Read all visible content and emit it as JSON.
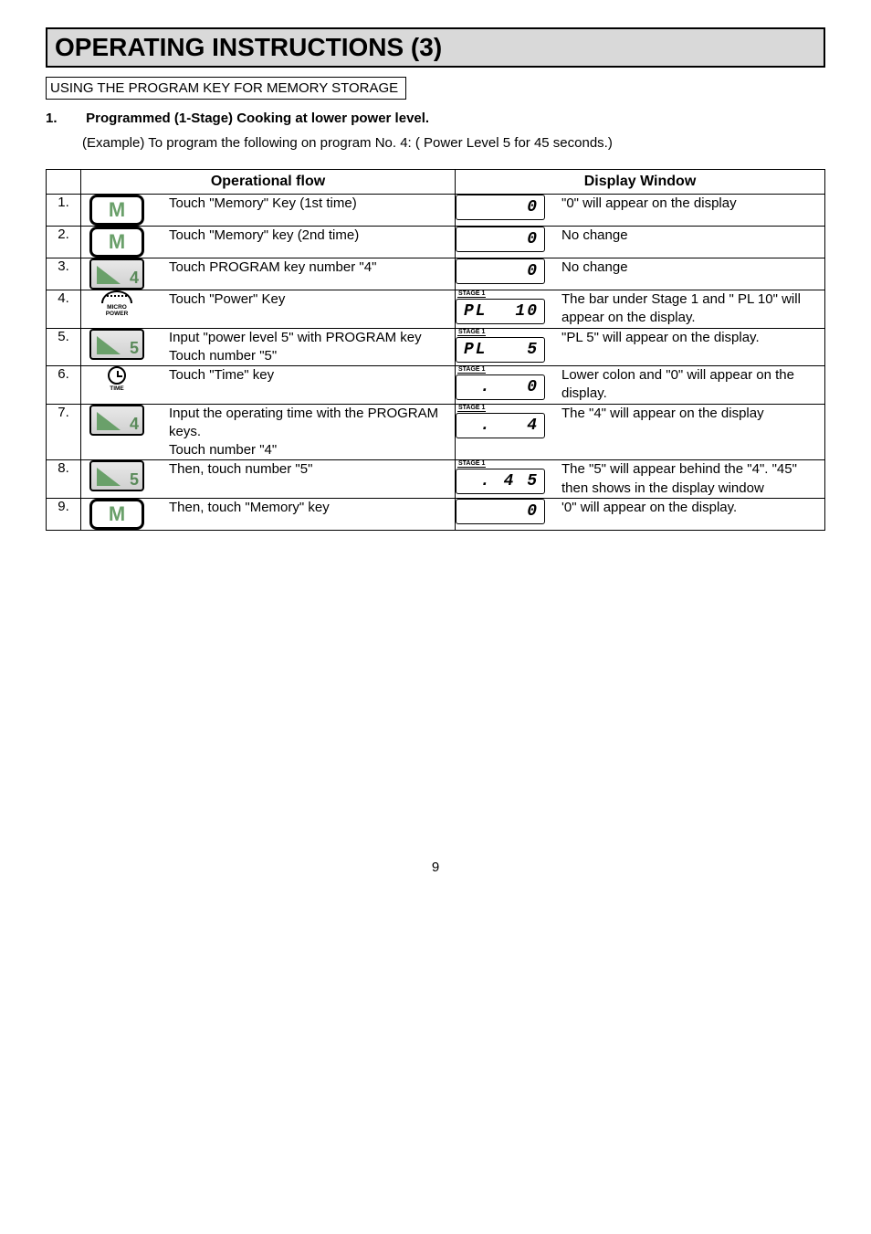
{
  "page": {
    "header": "OPERATING INSTRUCTIONS (3)",
    "subheader": "USING THE PROGRAM KEY FOR MEMORY STORAGE",
    "stepNum": "1.",
    "stepTitle": "Programmed (1-Stage) Cooking at lower power level.",
    "example": "(Example) To program the following on program No. 4: ( Power Level 5 for 45 seconds.)",
    "pageNumber": "9"
  },
  "table": {
    "headers": {
      "opflow": "Operational flow",
      "display": "Display Window"
    },
    "stageLabel": "STAGE 1",
    "iconLabels": {
      "micro": "MICRO\nPOWER",
      "time": "TIME"
    },
    "rows": [
      {
        "n": "1.",
        "keyType": "M",
        "keyVal": "M",
        "opText": "Touch \"Memory\" Key (1st time)",
        "stage": false,
        "lcdLeft": "",
        "lcdRight": "0",
        "dispText": "\"0\" will appear on the display"
      },
      {
        "n": "2.",
        "keyType": "M",
        "keyVal": "M",
        "opText": "Touch \"Memory\" key (2nd time)",
        "stage": false,
        "lcdLeft": "",
        "lcdRight": "0",
        "dispText": "No change"
      },
      {
        "n": "3.",
        "keyType": "prog",
        "keyVal": "4",
        "opText": "Touch PROGRAM key number \"4\"",
        "stage": false,
        "lcdLeft": "",
        "lcdRight": "0",
        "dispText": "No change"
      },
      {
        "n": "4.",
        "keyType": "micro",
        "keyVal": "",
        "opText": "Touch \"Power\" Key",
        "stage": true,
        "lcdLeft": "PL",
        "lcdRight": "10",
        "dispText": "The bar under Stage 1 and \" PL 10\" will appear on the display."
      },
      {
        "n": "5.",
        "keyType": "prog",
        "keyVal": "5",
        "opText": "Input \"power level 5\" with PROGRAM key Touch number \"5\"",
        "stage": true,
        "lcdLeft": "PL",
        "lcdRight": "5",
        "dispText": "\"PL 5\" will appear on the display."
      },
      {
        "n": "6.",
        "keyType": "time",
        "keyVal": "",
        "opText": "Touch \"Time\" key",
        "stage": true,
        "lcdLeft": "",
        "lcdRight": ".   0",
        "dispText": "Lower colon and \"0\" will appear on the display."
      },
      {
        "n": "7.",
        "keyType": "prog",
        "keyVal": "4",
        "opText": "Input the operating time with the PROGRAM keys.\nTouch number \"4\"",
        "stage": true,
        "lcdLeft": "",
        "lcdRight": ".   4",
        "dispText": "The \"4\" will appear on the display"
      },
      {
        "n": "8.",
        "keyType": "prog",
        "keyVal": "5",
        "opText": "Then, touch number \"5\"",
        "stage": true,
        "lcdLeft": "",
        "lcdRight": ". 4 5",
        "dispText": "The \"5\" will appear behind the \"4\". \"45\" then shows in the display window"
      },
      {
        "n": "9.",
        "keyType": "M",
        "keyVal": "M",
        "opText": "Then, touch \"Memory\" key",
        "stage": false,
        "lcdLeft": "",
        "lcdRight": "0",
        "dispText": "'0\" will appear on the display."
      }
    ]
  }
}
